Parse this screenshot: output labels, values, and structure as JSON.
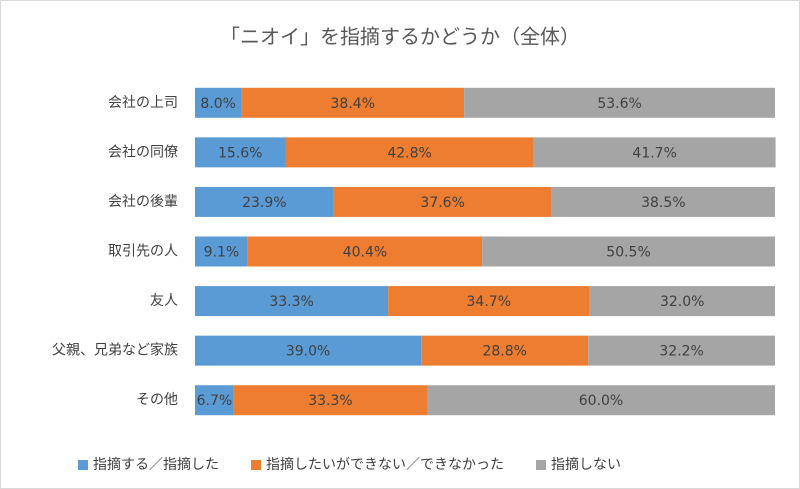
{
  "chart_data": {
    "type": "bar",
    "orientation": "horizontal",
    "stacked": true,
    "title": "「ニオイ」を指摘するかどうか（全体）",
    "categories": [
      "会社の上司",
      "会社の同僚",
      "会社の後輩",
      "取引先の人",
      "友人",
      "父親、兄弟など家族",
      "その他"
    ],
    "xlim": [
      0,
      100
    ],
    "legend": "bottom",
    "series": [
      {
        "name": "指摘する／指摘した",
        "color": "#5b9bd5",
        "values": [
          8.0,
          15.6,
          23.9,
          9.1,
          33.3,
          39.0,
          6.7
        ],
        "value_labels": [
          "8.0%",
          "15.6%",
          "23.9%",
          "9.1%",
          "33.3%",
          "39.0%",
          "6.7%"
        ]
      },
      {
        "name": "指摘したいができない／できなかった",
        "color": "#ed7d31",
        "values": [
          38.4,
          42.8,
          37.6,
          40.4,
          34.7,
          28.8,
          33.3
        ],
        "value_labels": [
          "38.4%",
          "42.8%",
          "37.6%",
          "40.4%",
          "34.7%",
          "28.8%",
          "33.3%"
        ]
      },
      {
        "name": "指摘しない",
        "color": "#a5a5a5",
        "values": [
          53.6,
          41.7,
          38.5,
          50.5,
          32.0,
          32.2,
          60.0
        ],
        "value_labels": [
          "53.6%",
          "41.7%",
          "38.5%",
          "50.5%",
          "32.0%",
          "32.2%",
          "60.0%"
        ]
      }
    ]
  }
}
